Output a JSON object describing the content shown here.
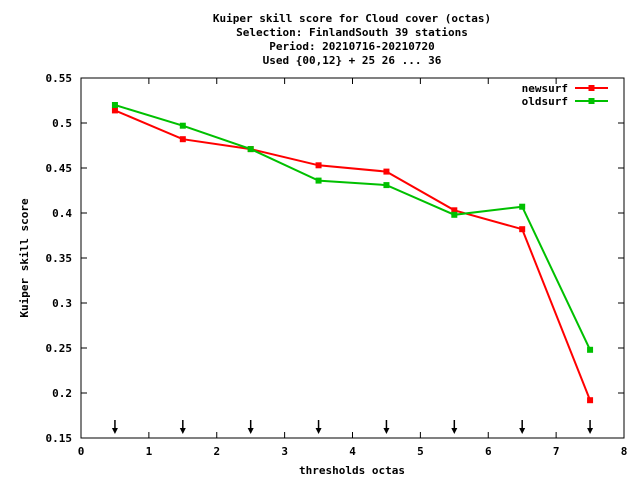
{
  "chart_data": {
    "type": "line",
    "title_lines": [
      "Kuiper skill score  for Cloud cover (octas)",
      "Selection: FinlandSouth     39 stations",
      "Period: 20210716-20210720",
      "Used {00,12} + 25 26 ... 36"
    ],
    "xlabel": "thresholds octas",
    "ylabel": "Kuiper skill score",
    "xlim": [
      0,
      8
    ],
    "ylim": [
      0.15,
      0.55
    ],
    "xticks": [
      "0",
      "1",
      "2",
      "3",
      "4",
      "5",
      "6",
      "7",
      "8"
    ],
    "yticks": [
      "0.15",
      "0.2",
      "0.25",
      "0.3",
      "0.35",
      "0.4",
      "0.45",
      "0.5",
      "0.55"
    ],
    "grid": false,
    "legend_position": "top-right",
    "arrow_markers_x": [
      0.5,
      1.5,
      2.5,
      3.5,
      4.5,
      5.5,
      6.5,
      7.5
    ],
    "series": [
      {
        "name": "newsurf",
        "color": "#ff0000",
        "x": [
          0.5,
          1.5,
          2.5,
          3.5,
          4.5,
          5.5,
          6.5,
          7.5
        ],
        "y": [
          0.514,
          0.482,
          0.471,
          0.453,
          0.446,
          0.403,
          0.382,
          0.192
        ]
      },
      {
        "name": "oldsurf",
        "color": "#00c000",
        "x": [
          0.5,
          1.5,
          2.5,
          3.5,
          4.5,
          5.5,
          6.5,
          7.5
        ],
        "y": [
          0.52,
          0.497,
          0.471,
          0.436,
          0.431,
          0.398,
          0.407,
          0.248
        ]
      }
    ]
  }
}
